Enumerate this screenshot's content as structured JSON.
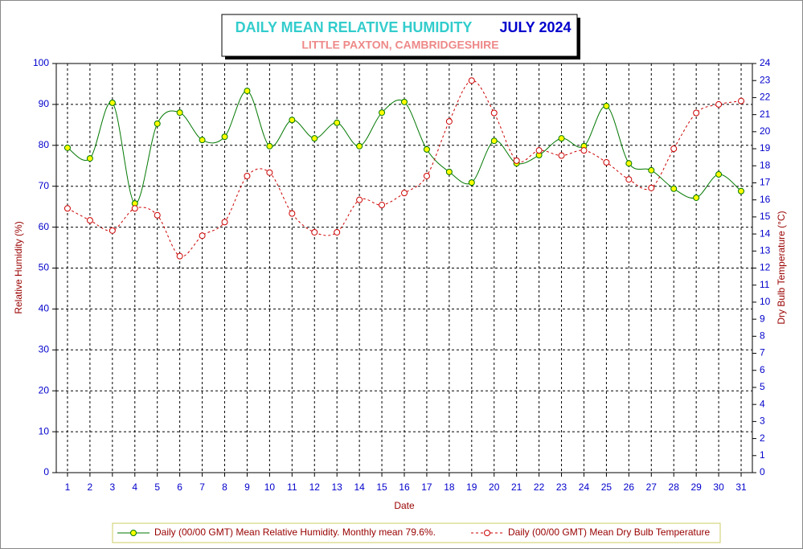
{
  "chart_data": {
    "type": "line",
    "title": "DAILY MEAN RELATIVE HUMIDITY",
    "period": "JULY 2024",
    "subtitle": "LITTLE PAXTON, CAMBRIDGESHIRE",
    "xlabel": "Date",
    "ylabel": "Relative Humidity (%)",
    "y2label": "Dry Bulb Temperature (°C)",
    "categories": [
      "1",
      "2",
      "3",
      "4",
      "5",
      "6",
      "7",
      "8",
      "9",
      "10",
      "11",
      "12",
      "13",
      "14",
      "15",
      "16",
      "17",
      "18",
      "19",
      "20",
      "21",
      "22",
      "23",
      "24",
      "25",
      "26",
      "27",
      "28",
      "29",
      "30",
      "31"
    ],
    "series": [
      {
        "name": "Daily (00/00 GMT) Mean Relative Humidity. Monthly mean 79.6%.",
        "color": "#007700",
        "marker_fill": "#ffff00",
        "dashed": false,
        "axis": "y",
        "values": [
          79.4,
          76.8,
          90.4,
          65.8,
          85.3,
          88.0,
          81.3,
          82.1,
          93.3,
          79.8,
          86.2,
          81.7,
          85.5,
          79.8,
          88.0,
          90.6,
          79.0,
          73.5,
          70.9,
          81.1,
          75.6,
          77.6,
          81.7,
          79.8,
          89.6,
          75.6,
          73.9,
          69.4,
          67.2,
          72.9,
          68.8
        ]
      },
      {
        "name": "Daily (00/00 GMT) Mean Dry Bulb Temperature",
        "color": "#cc0000",
        "marker_fill": "#ffffff",
        "dashed": true,
        "axis": "y2",
        "values": [
          15.5,
          14.8,
          14.2,
          15.5,
          15.1,
          12.7,
          13.9,
          14.7,
          17.4,
          17.6,
          15.2,
          14.1,
          14.1,
          16.0,
          15.7,
          16.4,
          17.4,
          20.6,
          23.0,
          21.1,
          18.3,
          18.9,
          18.6,
          18.9,
          18.2,
          17.2,
          16.7,
          19.0,
          21.1,
          21.6,
          21.8
        ]
      }
    ],
    "ylim": [
      0,
      100
    ],
    "yticks": [
      0,
      10,
      20,
      30,
      40,
      50,
      60,
      70,
      80,
      90,
      100
    ],
    "y2lim": [
      0,
      24
    ],
    "y2ticks": [
      0,
      1,
      2,
      3,
      4,
      5,
      6,
      7,
      8,
      9,
      10,
      11,
      12,
      13,
      14,
      15,
      16,
      17,
      18,
      19,
      20,
      21,
      22,
      23,
      24
    ],
    "grid": true
  }
}
